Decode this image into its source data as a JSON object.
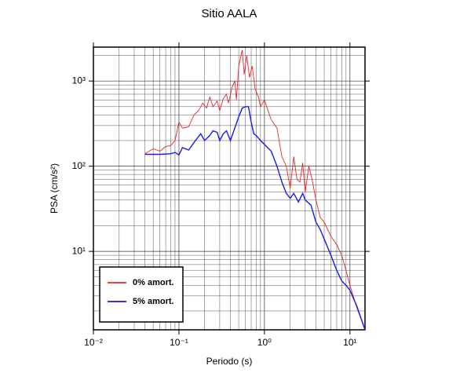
{
  "chart_data": {
    "type": "line",
    "title": "Sitio AALA",
    "x_label": "Periodo (s)",
    "y_label": "PSA (cm/s²)",
    "xscale": "log",
    "yscale": "log",
    "grid": true,
    "legend": "lower left",
    "xlim": [
      0.01,
      15
    ],
    "ylim": [
      1.2,
      2500
    ],
    "xticks": [
      {
        "value": 0.01,
        "label": "10⁻²"
      },
      {
        "value": 0.1,
        "label": "10⁻¹"
      },
      {
        "value": 1,
        "label": "10⁰"
      },
      {
        "value": 10,
        "label": "10¹"
      }
    ],
    "yticks": [
      {
        "value": 10,
        "label": "10¹"
      },
      {
        "value": 100,
        "label": "10²"
      },
      {
        "value": 1000,
        "label": "10³"
      }
    ],
    "xminorticks": [
      0.02,
      0.03,
      0.04,
      0.05,
      0.06,
      0.07,
      0.08,
      0.09,
      0.2,
      0.3,
      0.4,
      0.5,
      0.6,
      0.7,
      0.8,
      0.9,
      2,
      3,
      4,
      5,
      6,
      7,
      8,
      9
    ],
    "yminorticks": [
      2,
      3,
      4,
      5,
      6,
      7,
      8,
      9,
      20,
      30,
      40,
      50,
      60,
      70,
      80,
      90,
      200,
      300,
      400,
      500,
      600,
      700,
      800,
      900,
      2000
    ],
    "series": [
      {
        "name": "0% amort.",
        "color": "#e8262a",
        "x": [
          0.04,
          0.05,
          0.06,
          0.07,
          0.08,
          0.09,
          0.1,
          0.11,
          0.13,
          0.15,
          0.17,
          0.19,
          0.21,
          0.23,
          0.25,
          0.28,
          0.3,
          0.33,
          0.36,
          0.38,
          0.42,
          0.45,
          0.47,
          0.5,
          0.55,
          0.58,
          0.62,
          0.67,
          0.72,
          0.78,
          0.85,
          0.9,
          1.0,
          1.1,
          1.2,
          1.4,
          1.6,
          1.8,
          2.0,
          2.2,
          2.4,
          2.6,
          2.8,
          3.0,
          3.3,
          3.6,
          4,
          4.5,
          5,
          6,
          7,
          8,
          9,
          10,
          12,
          15
        ],
        "values": [
          140,
          160,
          150,
          170,
          175,
          200,
          330,
          280,
          290,
          400,
          450,
          550,
          480,
          650,
          500,
          580,
          450,
          620,
          700,
          550,
          850,
          1000,
          600,
          1500,
          2300,
          1200,
          2000,
          1100,
          1500,
          800,
          650,
          500,
          600,
          450,
          350,
          280,
          130,
          100,
          55,
          130,
          70,
          65,
          110,
          50,
          100,
          70,
          40,
          25,
          22,
          15,
          12,
          9,
          6,
          4,
          2.2,
          1.2
        ]
      },
      {
        "name": "5% amort.",
        "color": "#1a1ae6",
        "x": [
          0.04,
          0.06,
          0.08,
          0.09,
          0.1,
          0.11,
          0.13,
          0.15,
          0.18,
          0.2,
          0.23,
          0.25,
          0.28,
          0.3,
          0.33,
          0.36,
          0.4,
          0.45,
          0.5,
          0.55,
          0.6,
          0.65,
          0.7,
          0.75,
          0.8,
          0.9,
          1.0,
          1.2,
          1.4,
          1.6,
          1.8,
          2.0,
          2.2,
          2.5,
          2.8,
          3.0,
          3.5,
          4,
          4.5,
          5,
          6,
          7,
          8,
          9,
          10,
          12,
          15
        ],
        "values": [
          138,
          138,
          140,
          145,
          135,
          165,
          155,
          190,
          240,
          200,
          230,
          260,
          250,
          200,
          240,
          260,
          200,
          280,
          380,
          480,
          500,
          500,
          330,
          240,
          230,
          200,
          180,
          150,
          100,
          65,
          48,
          42,
          48,
          38,
          48,
          40,
          35,
          22,
          18,
          14,
          9,
          6,
          4.5,
          4,
          3.5,
          2.3,
          1.2
        ]
      }
    ]
  }
}
